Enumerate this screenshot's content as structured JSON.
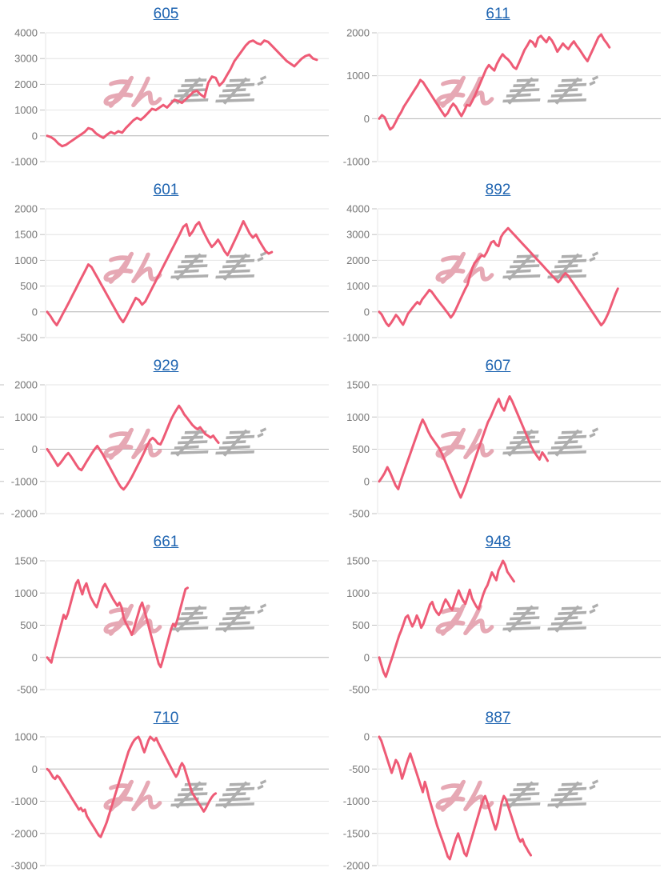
{
  "styles": {
    "line_color": "#ee5b76",
    "grid_color": "#e4e4e4",
    "baseline_color": "#b5b5b5",
    "tick_color": "#c2c2c2",
    "label_color": "#757575",
    "title_color": "#1d63b0",
    "background": "#ffffff"
  },
  "watermark": {
    "text": "みんレポ",
    "pink_text": "みん",
    "gray_text": "レポ",
    "pink_color": "#e29aa8",
    "gray_color": "#a6a6a6"
  },
  "chart_data": [
    {
      "type": "line",
      "title": "605",
      "ylim": [
        -1000,
        4000
      ],
      "y_ticks": [
        4000,
        3000,
        2000,
        1000,
        0,
        -1000
      ],
      "grid": true,
      "legend": "none",
      "end_fraction": 0.96,
      "series": [
        {
          "name": "605",
          "values": [
            0,
            -50,
            -150,
            -300,
            -400,
            -350,
            -250,
            -150,
            -50,
            50,
            150,
            300,
            250,
            100,
            0,
            -80,
            50,
            150,
            80,
            180,
            120,
            300,
            450,
            600,
            700,
            620,
            750,
            900,
            1050,
            1000,
            1100,
            1200,
            1100,
            1250,
            1400,
            1350,
            1280,
            1420,
            1550,
            1700,
            1750,
            1600,
            1500,
            2050,
            2300,
            2250,
            1950,
            2100,
            2350,
            2600,
            2900,
            3100,
            3300,
            3500,
            3650,
            3700,
            3600,
            3550,
            3700,
            3650,
            3500,
            3350,
            3200,
            3050,
            2900,
            2800,
            2700,
            2850,
            3000,
            3100,
            3150,
            3000,
            2950
          ]
        }
      ]
    },
    {
      "type": "line",
      "title": "611",
      "ylim": [
        -1000,
        2000
      ],
      "y_ticks": [
        2000,
        1000,
        0,
        -1000
      ],
      "grid": true,
      "legend": "none",
      "end_fraction": 0.82,
      "series": [
        {
          "name": "611",
          "values": [
            0,
            80,
            30,
            -120,
            -250,
            -200,
            -80,
            50,
            150,
            280,
            380,
            480,
            580,
            680,
            780,
            900,
            850,
            750,
            650,
            550,
            450,
            350,
            250,
            150,
            60,
            130,
            260,
            350,
            280,
            160,
            60,
            180,
            320,
            300,
            420,
            550,
            700,
            850,
            1000,
            1150,
            1250,
            1180,
            1120,
            1280,
            1400,
            1500,
            1430,
            1380,
            1300,
            1200,
            1160,
            1300,
            1450,
            1600,
            1700,
            1820,
            1780,
            1680,
            1880,
            1930,
            1850,
            1780,
            1900,
            1820,
            1700,
            1560,
            1650,
            1750,
            1680,
            1620,
            1720,
            1800,
            1700,
            1620,
            1520,
            1420,
            1340,
            1480,
            1620,
            1760,
            1900,
            1960,
            1840,
            1760,
            1660
          ]
        }
      ]
    },
    {
      "type": "line",
      "title": "601",
      "ylim": [
        -500,
        2000
      ],
      "y_ticks": [
        2000,
        1500,
        1000,
        500,
        0,
        -500
      ],
      "grid": true,
      "legend": "none",
      "end_fraction": 0.8,
      "series": [
        {
          "name": "601",
          "values": [
            0,
            -80,
            -180,
            -260,
            -150,
            -30,
            80,
            200,
            320,
            440,
            560,
            680,
            800,
            920,
            870,
            760,
            650,
            540,
            430,
            320,
            210,
            100,
            -10,
            -120,
            -200,
            -90,
            30,
            150,
            270,
            230,
            140,
            200,
            320,
            440,
            560,
            680,
            800,
            920,
            1040,
            1160,
            1280,
            1400,
            1520,
            1650,
            1700,
            1480,
            1560,
            1680,
            1740,
            1600,
            1480,
            1360,
            1260,
            1320,
            1400,
            1300,
            1180,
            1100,
            1220,
            1350,
            1480,
            1620,
            1760,
            1640,
            1520,
            1440,
            1500,
            1380,
            1280,
            1180,
            1130,
            1160
          ]
        }
      ]
    },
    {
      "type": "line",
      "title": "892",
      "ylim": [
        -1000,
        4000
      ],
      "y_ticks": [
        4000,
        3000,
        2000,
        1000,
        0,
        -1000
      ],
      "grid": true,
      "legend": "none",
      "end_fraction": 0.85,
      "series": [
        {
          "name": "892",
          "values": [
            0,
            -100,
            -280,
            -450,
            -550,
            -430,
            -280,
            -120,
            -220,
            -380,
            -500,
            -300,
            -80,
            40,
            160,
            280,
            380,
            300,
            480,
            600,
            720,
            850,
            780,
            650,
            520,
            400,
            280,
            160,
            40,
            -80,
            -220,
            -100,
            80,
            280,
            480,
            680,
            880,
            1050,
            1400,
            1700,
            1900,
            2000,
            2100,
            2200,
            2150,
            2300,
            2500,
            2700,
            2750,
            2600,
            2550,
            2900,
            3050,
            3150,
            3250,
            3150,
            3050,
            2950,
            2850,
            2750,
            2650,
            2550,
            2450,
            2350,
            2250,
            2150,
            2050,
            1950,
            1850,
            1750,
            1650,
            1550,
            1450,
            1350,
            1250,
            1150,
            1250,
            1400,
            1500,
            1420,
            1280,
            1150,
            1020,
            880,
            740,
            600,
            460,
            320,
            180,
            40,
            -100,
            -240,
            -380,
            -520,
            -420,
            -250,
            -50,
            200,
            450,
            700,
            900
          ]
        }
      ]
    },
    {
      "type": "line",
      "title": "929",
      "ylim": [
        -2000,
        2000
      ],
      "y_ticks": [
        2000,
        1000,
        0,
        -1000,
        -2000
      ],
      "grid": true,
      "legend": "none",
      "end_fraction": 0.61,
      "left_edge_ticks": true,
      "series": [
        {
          "name": "929",
          "values": [
            0,
            -120,
            -250,
            -380,
            -520,
            -430,
            -320,
            -200,
            -120,
            -220,
            -350,
            -480,
            -600,
            -650,
            -520,
            -380,
            -250,
            -120,
            0,
            100,
            -20,
            -150,
            -300,
            -450,
            -600,
            -750,
            -900,
            -1050,
            -1180,
            -1250,
            -1150,
            -1020,
            -880,
            -720,
            -560,
            -400,
            -230,
            -60,
            120,
            280,
            350,
            280,
            180,
            150,
            320,
            520,
            720,
            920,
            1080,
            1220,
            1350,
            1230,
            1080,
            980,
            870,
            760,
            680,
            620,
            680,
            580,
            470,
            420,
            360,
            420,
            300,
            200
          ]
        }
      ]
    },
    {
      "type": "line",
      "title": "607",
      "ylim": [
        -500,
        1500
      ],
      "y_ticks": [
        1500,
        1000,
        500,
        0,
        -500
      ],
      "grid": true,
      "legend": "none",
      "end_fraction": 0.6,
      "series": [
        {
          "name": "607",
          "values": [
            0,
            60,
            130,
            220,
            140,
            40,
            -60,
            -120,
            20,
            140,
            260,
            380,
            500,
            620,
            740,
            860,
            960,
            880,
            780,
            700,
            640,
            580,
            520,
            440,
            340,
            240,
            140,
            40,
            -60,
            -160,
            -250,
            -150,
            -40,
            80,
            200,
            320,
            440,
            560,
            680,
            800,
            920,
            1000,
            1100,
            1200,
            1280,
            1160,
            1100,
            1220,
            1320,
            1240,
            1140,
            1040,
            940,
            840,
            740,
            640,
            540,
            460,
            400,
            340,
            450,
            390,
            320
          ]
        }
      ]
    },
    {
      "type": "line",
      "title": "661",
      "ylim": [
        -500,
        1500
      ],
      "y_ticks": [
        1500,
        1000,
        500,
        0,
        -500
      ],
      "grid": true,
      "legend": "none",
      "end_fraction": 0.5,
      "series": [
        {
          "name": "661",
          "values": [
            0,
            -40,
            -80,
            60,
            180,
            300,
            420,
            540,
            660,
            600,
            680,
            800,
            920,
            1040,
            1150,
            1200,
            1080,
            980,
            1090,
            1150,
            1040,
            940,
            880,
            820,
            780,
            880,
            990,
            1090,
            1140,
            1080,
            1020,
            960,
            900,
            850,
            800,
            850,
            780,
            620,
            540,
            480,
            420,
            350,
            450,
            560,
            670,
            780,
            850,
            740,
            620,
            500,
            380,
            260,
            140,
            20,
            -100,
            -150,
            -40,
            80,
            200,
            320,
            440,
            520,
            480,
            580,
            700,
            820,
            940,
            1060,
            1080
          ]
        }
      ]
    },
    {
      "type": "line",
      "title": "948",
      "ylim": [
        -500,
        1500
      ],
      "y_ticks": [
        1500,
        1000,
        500,
        0,
        -500
      ],
      "grid": true,
      "legend": "none",
      "end_fraction": 0.48,
      "series": [
        {
          "name": "948",
          "values": [
            0,
            -120,
            -230,
            -300,
            -200,
            -90,
            10,
            120,
            230,
            340,
            420,
            520,
            620,
            650,
            560,
            480,
            550,
            650,
            580,
            460,
            520,
            620,
            720,
            820,
            860,
            760,
            700,
            660,
            720,
            820,
            900,
            850,
            780,
            740,
            840,
            950,
            1040,
            950,
            880,
            830,
            940,
            1050,
            920,
            850,
            790,
            750,
            860,
            970,
            1060,
            1120,
            1220,
            1320,
            1260,
            1200,
            1350,
            1420,
            1500,
            1440,
            1330,
            1280,
            1230,
            1180
          ]
        }
      ]
    },
    {
      "type": "line",
      "title": "710",
      "ylim": [
        -3000,
        1000
      ],
      "y_ticks": [
        1000,
        0,
        -1000,
        -2000,
        -3000
      ],
      "grid": true,
      "legend": "none",
      "end_fraction": 0.6,
      "series": [
        {
          "name": "710",
          "values": [
            0,
            -60,
            -160,
            -260,
            -310,
            -210,
            -260,
            -360,
            -460,
            -560,
            -660,
            -760,
            -860,
            -960,
            -1060,
            -1160,
            -1260,
            -1210,
            -1310,
            -1260,
            -1460,
            -1560,
            -1660,
            -1760,
            -1860,
            -1960,
            -2060,
            -2110,
            -1960,
            -1810,
            -1660,
            -1460,
            -1260,
            -1060,
            -860,
            -660,
            -460,
            -260,
            -60,
            140,
            340,
            540,
            680,
            800,
            900,
            960,
            1000,
            880,
            680,
            520,
            700,
            880,
            1000,
            940,
            880,
            960,
            820,
            700,
            580,
            460,
            340,
            220,
            100,
            -20,
            -140,
            -240,
            -140,
            60,
            180,
            80,
            -120,
            -320,
            -520,
            -720,
            -820,
            -920,
            -1020,
            -1120,
            -1220,
            -1320,
            -1220,
            -1100,
            -980,
            -880,
            -800,
            -760
          ]
        }
      ]
    },
    {
      "type": "line",
      "title": "887",
      "ylim": [
        -2000,
        0
      ],
      "y_ticks": [
        0,
        -500,
        -1000,
        -1500,
        -2000
      ],
      "grid": true,
      "legend": "none",
      "end_fraction": 0.54,
      "series": [
        {
          "name": "887",
          "values": [
            0,
            -60,
            -160,
            -260,
            -360,
            -460,
            -560,
            -460,
            -360,
            -410,
            -510,
            -650,
            -550,
            -440,
            -340,
            -260,
            -360,
            -460,
            -560,
            -660,
            -760,
            -860,
            -700,
            -810,
            -950,
            -1060,
            -1170,
            -1280,
            -1390,
            -1480,
            -1570,
            -1660,
            -1760,
            -1860,
            -1900,
            -1790,
            -1680,
            -1580,
            -1500,
            -1600,
            -1700,
            -1810,
            -1850,
            -1740,
            -1630,
            -1520,
            -1410,
            -1300,
            -1190,
            -1080,
            -980,
            -920,
            -1010,
            -1120,
            -1230,
            -1340,
            -1440,
            -1340,
            -1180,
            -1020,
            -920,
            -970,
            -1070,
            -1170,
            -1270,
            -1370,
            -1470,
            -1570,
            -1630,
            -1590,
            -1680,
            -1730,
            -1790,
            -1840
          ]
        }
      ]
    }
  ]
}
